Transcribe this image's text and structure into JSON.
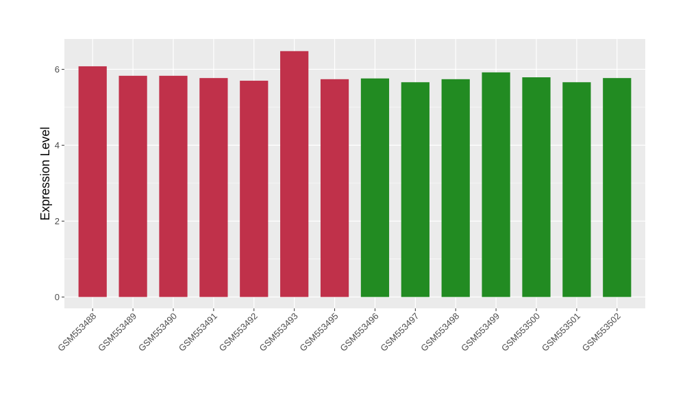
{
  "chart_data": {
    "type": "bar",
    "title": "",
    "xlabel": "",
    "ylabel": "Expression Level",
    "ylim": [
      -0.3,
      6.8
    ],
    "yticks": [
      0,
      2,
      4,
      6
    ],
    "grid": true,
    "legend": "none",
    "categories": [
      "GSM553488",
      "GSM553489",
      "GSM553490",
      "GSM553491",
      "GSM553492",
      "GSM553493",
      "GSM553495",
      "GSM553496",
      "GSM553497",
      "GSM553498",
      "GSM553499",
      "GSM553500",
      "GSM553501",
      "GSM553502"
    ],
    "values": [
      6.08,
      5.83,
      5.83,
      5.77,
      5.7,
      6.48,
      5.74,
      5.76,
      5.66,
      5.74,
      5.92,
      5.79,
      5.66,
      5.77
    ],
    "bar_colors": [
      "#C0314A",
      "#C0314A",
      "#C0314A",
      "#C0314A",
      "#C0314A",
      "#C0314A",
      "#C0314A",
      "#228B22",
      "#228B22",
      "#228B22",
      "#228B22",
      "#228B22",
      "#228B22",
      "#228B22"
    ],
    "panel_background": "#EBEBEB",
    "gridline_color": "#FFFFFF"
  }
}
